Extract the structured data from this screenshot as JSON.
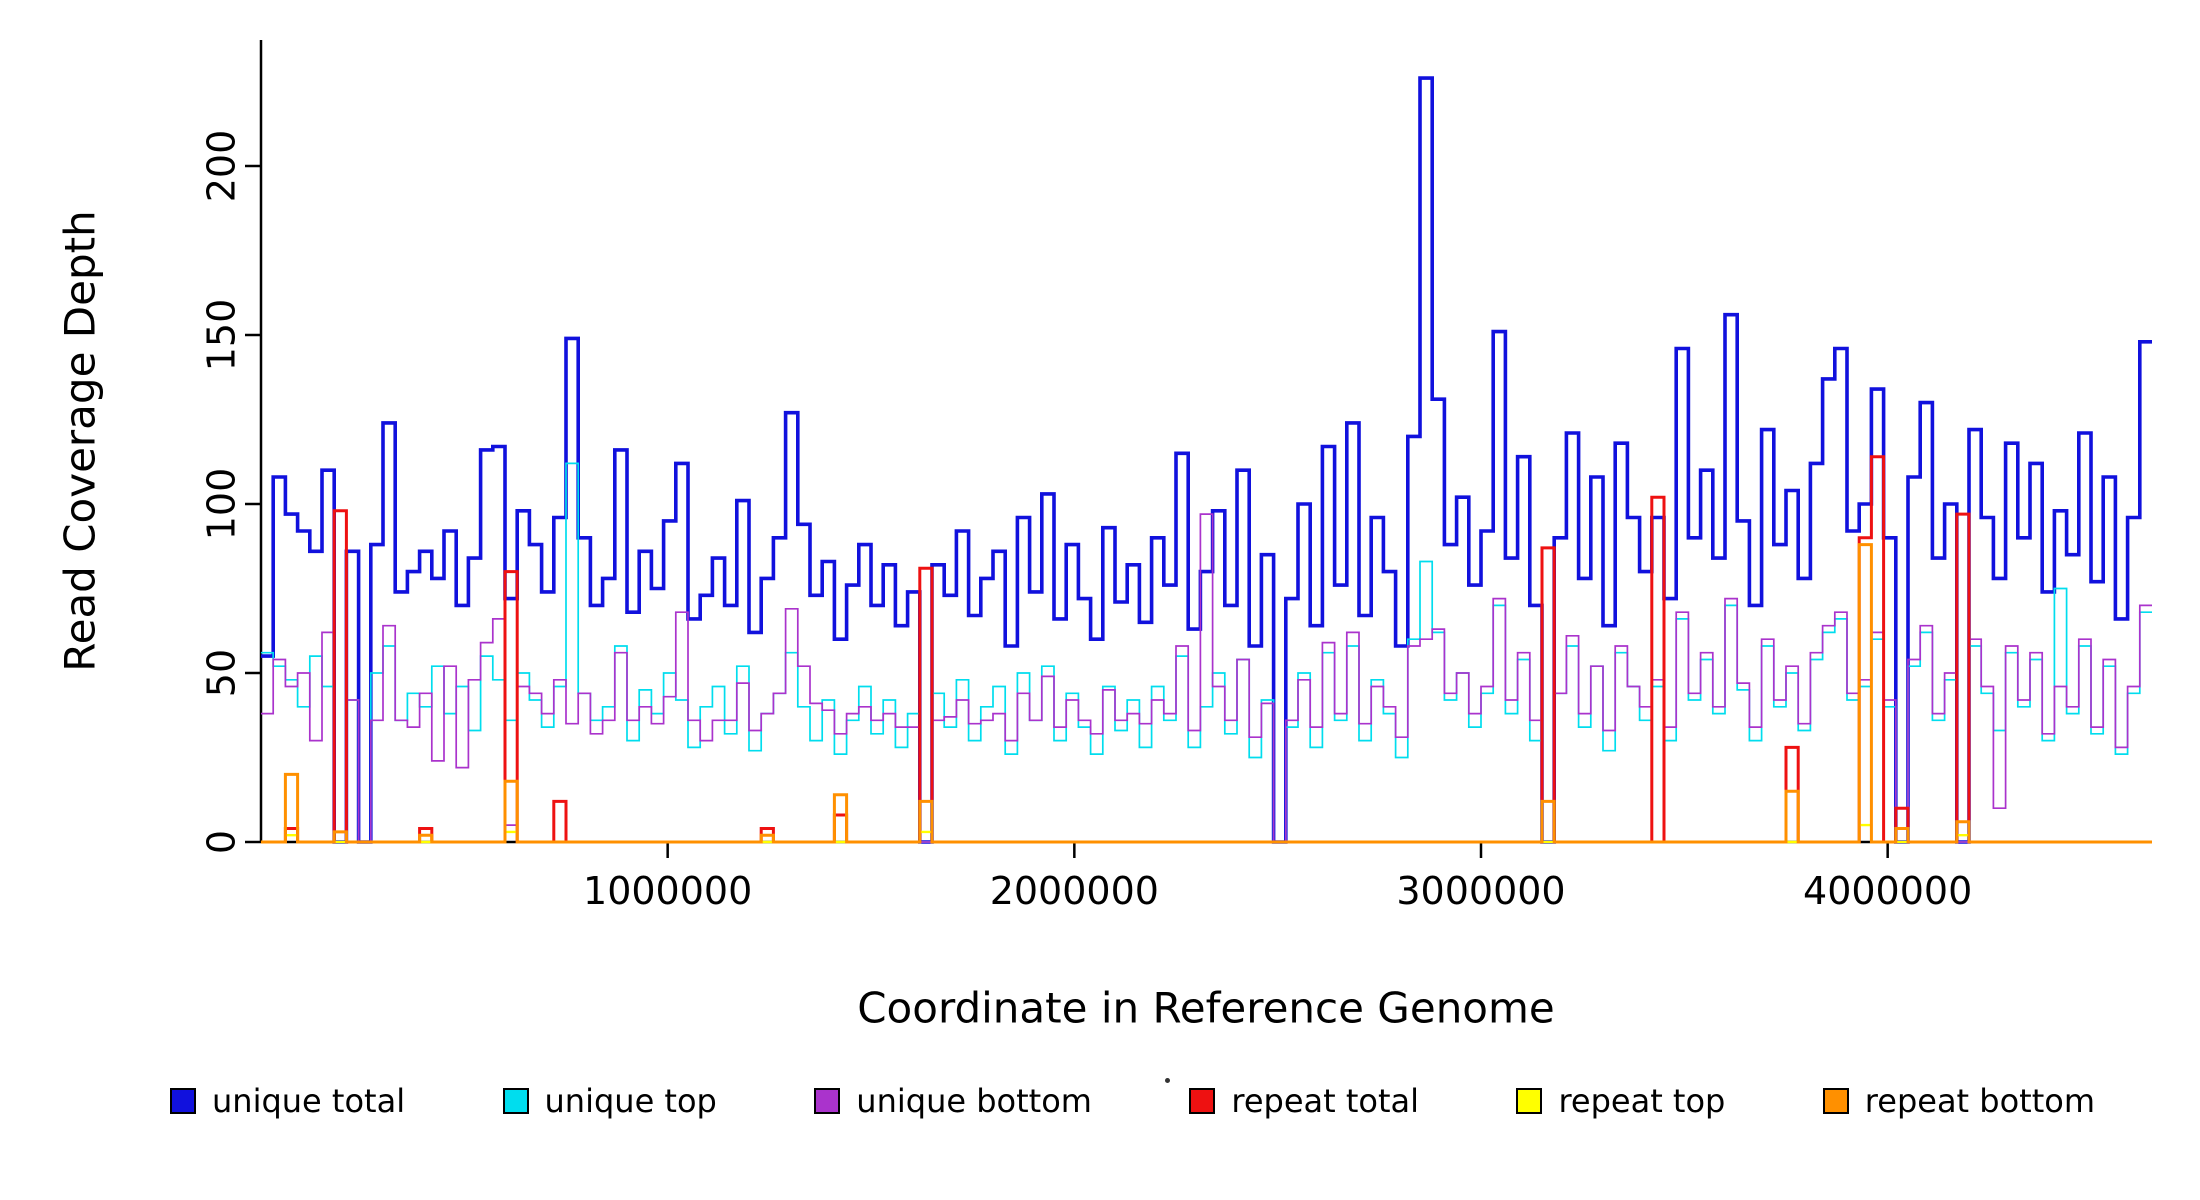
{
  "chart_data": {
    "type": "line",
    "subtype": "step",
    "title": "",
    "xlabel": "Coordinate in Reference Genome",
    "ylabel": "Read Coverage Depth",
    "xlim": [
      0,
      4650000
    ],
    "ylim": [
      0,
      230
    ],
    "x_ticks": [
      1000000,
      2000000,
      3000000,
      4000000
    ],
    "y_ticks": [
      0,
      50,
      100,
      150,
      200
    ],
    "grid": false,
    "legend_position": "bottom",
    "background": "#FFFFFF",
    "axis_color": "#000000",
    "n_points": 155,
    "x_start": 0,
    "x_step": 30000,
    "series": [
      {
        "name": "unique total",
        "color": "#1111DD",
        "width": 3.6,
        "values": [
          55,
          108,
          97,
          92,
          86,
          110,
          0,
          86,
          0,
          88,
          124,
          74,
          80,
          86,
          78,
          92,
          70,
          84,
          116,
          117,
          72,
          98,
          88,
          74,
          96,
          149,
          90,
          70,
          78,
          116,
          68,
          86,
          75,
          95,
          112,
          66,
          73,
          84,
          70,
          101,
          62,
          78,
          90,
          127,
          94,
          73,
          83,
          60,
          76,
          88,
          70,
          82,
          64,
          74,
          0,
          82,
          73,
          92,
          67,
          78,
          86,
          58,
          96,
          74,
          103,
          66,
          88,
          72,
          60,
          93,
          71,
          82,
          65,
          90,
          76,
          115,
          63,
          80,
          98,
          70,
          110,
          58,
          85,
          0,
          72,
          100,
          64,
          117,
          76,
          124,
          67,
          96,
          80,
          58,
          120,
          226,
          131,
          88,
          102,
          76,
          92,
          151,
          84,
          114,
          70,
          0,
          90,
          121,
          78,
          108,
          64,
          118,
          96,
          80,
          96,
          72,
          146,
          90,
          110,
          84,
          156,
          95,
          70,
          122,
          88,
          104,
          78,
          112,
          137,
          146,
          92,
          100,
          134,
          90,
          0,
          108,
          130,
          84,
          100,
          0,
          122,
          96,
          78,
          118,
          90,
          112,
          74,
          98,
          85,
          121,
          77,
          108,
          66,
          96,
          148
        ]
      },
      {
        "name": "unique top",
        "color": "#00DDEE",
        "width": 1.7,
        "values": [
          56,
          52,
          48,
          40,
          55,
          46,
          0,
          42,
          0,
          50,
          58,
          36,
          44,
          40,
          52,
          38,
          46,
          33,
          55,
          48,
          36,
          50,
          42,
          34,
          46,
          112,
          44,
          36,
          40,
          58,
          30,
          45,
          38,
          50,
          42,
          28,
          40,
          46,
          32,
          52,
          27,
          38,
          44,
          56,
          40,
          30,
          42,
          26,
          36,
          46,
          32,
          42,
          28,
          38,
          0,
          44,
          34,
          48,
          30,
          40,
          46,
          26,
          50,
          36,
          52,
          30,
          44,
          34,
          26,
          46,
          33,
          42,
          28,
          46,
          36,
          55,
          28,
          40,
          50,
          32,
          54,
          25,
          42,
          0,
          34,
          50,
          28,
          56,
          36,
          58,
          30,
          48,
          38,
          25,
          60,
          83,
          62,
          42,
          50,
          34,
          44,
          70,
          38,
          54,
          30,
          0,
          44,
          58,
          34,
          52,
          27,
          56,
          46,
          36,
          46,
          30,
          66,
          42,
          54,
          38,
          70,
          45,
          30,
          58,
          40,
          50,
          33,
          54,
          62,
          66,
          42,
          46,
          60,
          40,
          0,
          52,
          62,
          36,
          48,
          0,
          58,
          44,
          33,
          56,
          40,
          54,
          30,
          75,
          38,
          58,
          32,
          52,
          26,
          44,
          68
        ]
      },
      {
        "name": "unique bottom",
        "color": "#AA33CC",
        "width": 1.7,
        "values": [
          38,
          54,
          46,
          50,
          30,
          62,
          0,
          42,
          0,
          36,
          64,
          36,
          34,
          44,
          24,
          52,
          22,
          48,
          59,
          66,
          5,
          46,
          44,
          38,
          48,
          35,
          44,
          32,
          36,
          56,
          36,
          40,
          35,
          43,
          68,
          36,
          30,
          36,
          36,
          47,
          33,
          38,
          44,
          69,
          52,
          41,
          39,
          32,
          38,
          40,
          36,
          38,
          34,
          34,
          0,
          36,
          37,
          42,
          35,
          36,
          38,
          30,
          44,
          36,
          49,
          34,
          42,
          36,
          32,
          45,
          36,
          38,
          35,
          42,
          38,
          58,
          33,
          97,
          46,
          36,
          54,
          31,
          41,
          0,
          36,
          48,
          34,
          59,
          38,
          62,
          35,
          46,
          40,
          31,
          58,
          60,
          63,
          44,
          50,
          38,
          46,
          72,
          42,
          56,
          36,
          0,
          44,
          61,
          38,
          52,
          33,
          58,
          46,
          40,
          48,
          34,
          68,
          44,
          56,
          40,
          72,
          47,
          34,
          60,
          42,
          52,
          35,
          56,
          64,
          68,
          44,
          48,
          62,
          42,
          0,
          54,
          64,
          38,
          50,
          0,
          60,
          46,
          10,
          58,
          42,
          56,
          32,
          46,
          40,
          60,
          34,
          54,
          28,
          46,
          70
        ]
      },
      {
        "name": "repeat total",
        "color": "#EE1111",
        "width": 3.0,
        "base": 0,
        "spikes": {
          "2": 4,
          "6": 98,
          "13": 4,
          "20": 80,
          "24": 12,
          "41": 4,
          "47": 8,
          "54": 81,
          "105": 87,
          "114": 102,
          "125": 28,
          "131": 90,
          "132": 114,
          "134": 10,
          "139": 97
        }
      },
      {
        "name": "repeat top",
        "color": "#FFFF00",
        "width": 2.4,
        "base": 0,
        "spikes": {
          "2": 2,
          "20": 3,
          "54": 3,
          "131": 5,
          "139": 2
        }
      },
      {
        "name": "repeat bottom",
        "color": "#FF9000",
        "width": 3.0,
        "base": 0,
        "spikes": {
          "2": 20,
          "6": 3,
          "13": 2,
          "20": 18,
          "41": 2,
          "47": 14,
          "54": 12,
          "105": 12,
          "125": 15,
          "131": 88,
          "134": 4,
          "139": 6
        }
      }
    ]
  }
}
